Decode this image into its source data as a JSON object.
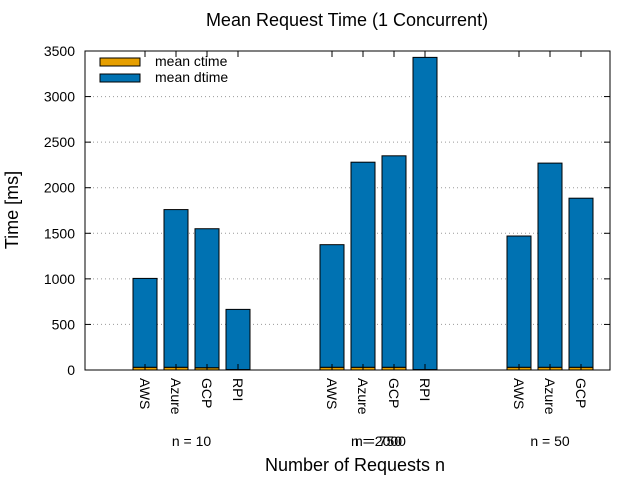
{
  "chart_data": {
    "type": "bar",
    "stacked": true,
    "title": "Mean Request Time (1 Concurrent)",
    "xlabel": "Number of Requests n",
    "ylabel": "Time [ms]",
    "ylim": [
      0,
      3500
    ],
    "yticks": [
      0,
      500,
      1000,
      1500,
      2000,
      2500,
      3000,
      3500
    ],
    "grid": "horizontal dotted",
    "legend_position": "top-left",
    "series": [
      {
        "name": "mean ctime",
        "color": "#E69F00"
      },
      {
        "name": "mean dtime",
        "color": "#0072B2"
      }
    ],
    "groups": [
      {
        "label": "n = 10",
        "bars": [
          {
            "category": "AWS",
            "ctime": 30,
            "dtime": 975
          },
          {
            "category": "Azure",
            "ctime": 30,
            "dtime": 1730
          },
          {
            "category": "GCP",
            "ctime": 25,
            "dtime": 1525
          },
          {
            "category": "RPI",
            "ctime": 5,
            "dtime": 660
          }
        ]
      },
      {
        "label": "n = 2000",
        "label_overlap": "n = 750",
        "bars": [
          {
            "category": "AWS",
            "ctime": 30,
            "dtime": 1345
          },
          {
            "category": "Azure",
            "ctime": 30,
            "dtime": 2250
          },
          {
            "category": "GCP",
            "ctime": 30,
            "dtime": 2320
          },
          {
            "category": "RPI",
            "ctime": 5,
            "dtime": 3425
          }
        ]
      },
      {
        "label": "n = 50",
        "bars": [
          {
            "category": "AWS",
            "ctime": 30,
            "dtime": 1440
          },
          {
            "category": "Azure",
            "ctime": 30,
            "dtime": 2240
          },
          {
            "category": "GCP",
            "ctime": 30,
            "dtime": 1855
          }
        ]
      }
    ]
  }
}
